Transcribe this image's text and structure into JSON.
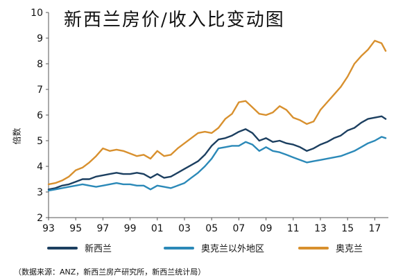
{
  "chart_data": {
    "type": "line",
    "title": "新西兰房价/收入比变动图",
    "ylabel": "倍数",
    "xlabel": "",
    "ylim": [
      2,
      10
    ],
    "xlim": [
      1993,
      2018
    ],
    "y_ticks": [
      2,
      3,
      4,
      5,
      6,
      7,
      8,
      9,
      10
    ],
    "x_tick_labels": [
      "93",
      "95",
      "97",
      "99",
      "01",
      "03",
      "05",
      "07",
      "09",
      "11",
      "13",
      "15",
      "17"
    ],
    "x_tick_values": [
      1993,
      1995,
      1997,
      1999,
      2001,
      2003,
      2005,
      2007,
      2009,
      2011,
      2013,
      2015,
      2017
    ],
    "grid": false,
    "legend_position": "bottom",
    "series": [
      {
        "name": "新西兰",
        "color": "#1c3f60",
        "x": [
          1993,
          1993.5,
          1994,
          1994.5,
          1995,
          1995.5,
          1996,
          1996.5,
          1997,
          1997.5,
          1998,
          1998.5,
          1999,
          1999.5,
          2000,
          2000.5,
          2001,
          2001.5,
          2002,
          2002.5,
          2003,
          2003.5,
          2004,
          2004.5,
          2005,
          2005.5,
          2006,
          2006.5,
          2007,
          2007.5,
          2008,
          2008.5,
          2009,
          2009.5,
          2010,
          2010.5,
          2011,
          2011.5,
          2012,
          2012.5,
          2013,
          2013.5,
          2014,
          2014.5,
          2015,
          2015.5,
          2016,
          2016.5,
          2017,
          2017.5,
          2017.8
        ],
        "y": [
          3.1,
          3.15,
          3.25,
          3.3,
          3.4,
          3.5,
          3.5,
          3.6,
          3.65,
          3.7,
          3.75,
          3.7,
          3.7,
          3.75,
          3.7,
          3.55,
          3.7,
          3.55,
          3.6,
          3.75,
          3.9,
          4.05,
          4.2,
          4.45,
          4.8,
          5.05,
          5.1,
          5.2,
          5.35,
          5.45,
          5.3,
          5.0,
          5.1,
          4.95,
          5.0,
          4.9,
          4.85,
          4.75,
          4.6,
          4.7,
          4.85,
          4.95,
          5.1,
          5.2,
          5.4,
          5.5,
          5.7,
          5.85,
          5.9,
          5.95,
          5.85
        ]
      },
      {
        "name": "奥克兰以外地区",
        "color": "#2b89b8",
        "x": [
          1993,
          1993.5,
          1994,
          1994.5,
          1995,
          1995.5,
          1996,
          1996.5,
          1997,
          1997.5,
          1998,
          1998.5,
          1999,
          1999.5,
          2000,
          2000.5,
          2001,
          2001.5,
          2002,
          2002.5,
          2003,
          2003.5,
          2004,
          2004.5,
          2005,
          2005.5,
          2006,
          2006.5,
          2007,
          2007.5,
          2008,
          2008.5,
          2009,
          2009.5,
          2010,
          2010.5,
          2011,
          2011.5,
          2012,
          2012.5,
          2013,
          2013.5,
          2014,
          2014.5,
          2015,
          2015.5,
          2016,
          2016.5,
          2017,
          2017.5,
          2017.8
        ],
        "y": [
          3.05,
          3.1,
          3.15,
          3.2,
          3.25,
          3.3,
          3.25,
          3.2,
          3.25,
          3.3,
          3.35,
          3.3,
          3.3,
          3.25,
          3.25,
          3.1,
          3.25,
          3.2,
          3.15,
          3.25,
          3.35,
          3.55,
          3.75,
          4.0,
          4.3,
          4.7,
          4.75,
          4.8,
          4.8,
          4.95,
          4.85,
          4.6,
          4.75,
          4.6,
          4.55,
          4.45,
          4.35,
          4.25,
          4.15,
          4.2,
          4.25,
          4.3,
          4.35,
          4.4,
          4.5,
          4.6,
          4.75,
          4.9,
          5.0,
          5.15,
          5.1
        ]
      },
      {
        "name": "奥克兰",
        "color": "#d8902e",
        "x": [
          1993,
          1993.5,
          1994,
          1994.5,
          1995,
          1995.5,
          1996,
          1996.5,
          1997,
          1997.5,
          1998,
          1998.5,
          1999,
          1999.5,
          2000,
          2000.5,
          2001,
          2001.5,
          2002,
          2002.5,
          2003,
          2003.5,
          2004,
          2004.5,
          2005,
          2005.5,
          2006,
          2006.5,
          2007,
          2007.5,
          2008,
          2008.5,
          2009,
          2009.5,
          2010,
          2010.5,
          2011,
          2011.5,
          2012,
          2012.5,
          2013,
          2013.5,
          2014,
          2014.5,
          2015,
          2015.5,
          2016,
          2016.5,
          2017,
          2017.5,
          2017.8
        ],
        "y": [
          3.3,
          3.35,
          3.45,
          3.6,
          3.85,
          3.95,
          4.15,
          4.4,
          4.7,
          4.6,
          4.65,
          4.6,
          4.5,
          4.4,
          4.45,
          4.3,
          4.6,
          4.4,
          4.45,
          4.7,
          4.9,
          5.1,
          5.3,
          5.35,
          5.3,
          5.5,
          5.85,
          6.05,
          6.5,
          6.55,
          6.3,
          6.05,
          6.0,
          6.1,
          6.35,
          6.2,
          5.9,
          5.8,
          5.65,
          5.75,
          6.2,
          6.5,
          6.8,
          7.1,
          7.5,
          8.0,
          8.3,
          8.55,
          8.9,
          8.8,
          8.5
        ]
      }
    ]
  },
  "legend": {
    "items": [
      {
        "label": "新西兰",
        "color": "#1c3f60"
      },
      {
        "label": "奥克兰以外地区",
        "color": "#2b89b8"
      },
      {
        "label": "奥克兰",
        "color": "#d8902e"
      }
    ]
  },
  "source_note": "（数据来源：ANZ，新西兰房产研究所，新西兰统计局）"
}
